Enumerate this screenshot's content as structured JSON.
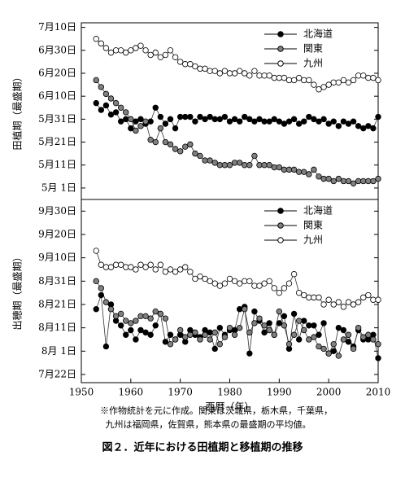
{
  "chart_data": [
    {
      "type": "line",
      "y_label": "田植期（最盛期）",
      "legend": "upper right",
      "x": [
        1953,
        1954,
        1955,
        1956,
        1957,
        1958,
        1959,
        1960,
        1961,
        1962,
        1963,
        1964,
        1965,
        1966,
        1967,
        1968,
        1969,
        1970,
        1971,
        1972,
        1973,
        1974,
        1975,
        1976,
        1977,
        1978,
        1979,
        1980,
        1981,
        1982,
        1983,
        1984,
        1985,
        1986,
        1987,
        1988,
        1989,
        1990,
        1991,
        1992,
        1993,
        1994,
        1995,
        1996,
        1997,
        1998,
        1999,
        2000,
        2001,
        2002,
        2003,
        2004,
        2005,
        2006,
        2007,
        2008,
        2009,
        2010
      ],
      "xlim": [
        1950,
        2010
      ],
      "ylim": [
        116,
        193
      ],
      "yticks": [
        {
          "value": 191,
          "label": "7月10日"
        },
        {
          "value": 181,
          "label": "6月30日"
        },
        {
          "value": 171,
          "label": "6月20日"
        },
        {
          "value": 161,
          "label": "6月10日"
        },
        {
          "value": 151,
          "label": "5月31日"
        },
        {
          "value": 141,
          "label": "5月21日"
        },
        {
          "value": 131,
          "label": "5月11日"
        },
        {
          "value": 121,
          "label": "5月 1日"
        }
      ],
      "series": [
        {
          "name": "北海道",
          "color": "#000000",
          "values": [
            158,
            155,
            157,
            153,
            154,
            150,
            151,
            147,
            150,
            151,
            149,
            150,
            156,
            152,
            149,
            151,
            147,
            152,
            152,
            152,
            150,
            152,
            151,
            152,
            151,
            151,
            152,
            150,
            151,
            150,
            152,
            151,
            150,
            151,
            150,
            150,
            151,
            150,
            149,
            150,
            151,
            149,
            150,
            152,
            151,
            150,
            151,
            149,
            150,
            148,
            150,
            149,
            150,
            148,
            147,
            148,
            147,
            152
          ]
        },
        {
          "name": "関東",
          "color": "#808080",
          "values": [
            168,
            165,
            162,
            160,
            158,
            156,
            154,
            151,
            146,
            148,
            150,
            142,
            141,
            147,
            141,
            140,
            138,
            137,
            139,
            140,
            136,
            135,
            133,
            133,
            132,
            131,
            131,
            131,
            132,
            132,
            131,
            131,
            135,
            131,
            131,
            131,
            130,
            130,
            129,
            129,
            129,
            128,
            128,
            127,
            129,
            126,
            125,
            125,
            124,
            125,
            124,
            124,
            123,
            124,
            124,
            124,
            124,
            125
          ]
        },
        {
          "name": "九州",
          "color": "#ffffff",
          "values": [
            186,
            184,
            182,
            180,
            181,
            181,
            180,
            181,
            182,
            183,
            181,
            179,
            180,
            178,
            179,
            181,
            178,
            176,
            175,
            175,
            174,
            173,
            173,
            172,
            172,
            171,
            172,
            171,
            171,
            172,
            171,
            170,
            172,
            170,
            170,
            170,
            169,
            169,
            169,
            168,
            168,
            169,
            168,
            168,
            166,
            164,
            165,
            166,
            167,
            167,
            168,
            167,
            168,
            170,
            170,
            169,
            169,
            168
          ]
        }
      ]
    },
    {
      "type": "line",
      "y_label": "出穂期（最盛期）",
      "x_label": "西暦（年）",
      "legend": "upper right",
      "x": [
        1953,
        1954,
        1955,
        1956,
        1957,
        1958,
        1959,
        1960,
        1961,
        1962,
        1963,
        1964,
        1965,
        1966,
        1967,
        1968,
        1969,
        1970,
        1971,
        1972,
        1973,
        1974,
        1975,
        1976,
        1977,
        1978,
        1979,
        1980,
        1981,
        1982,
        1983,
        1984,
        1985,
        1986,
        1987,
        1988,
        1989,
        1990,
        1991,
        1992,
        1993,
        1994,
        1995,
        1996,
        1997,
        1998,
        1999,
        2000,
        2001,
        2002,
        2003,
        2004,
        2005,
        2006,
        2007,
        2008,
        2009,
        2010
      ],
      "xlim": [
        1950,
        2010
      ],
      "xticks": [
        1950,
        1960,
        1970,
        1980,
        1990,
        2000,
        2010
      ],
      "ylim": [
        199.5,
        278
      ],
      "yticks": [
        {
          "value": 273,
          "label": "9月30日"
        },
        {
          "value": 263,
          "label": "9月20日"
        },
        {
          "value": 253,
          "label": "9月10日"
        },
        {
          "value": 243,
          "label": "8月31日"
        },
        {
          "value": 233,
          "label": "8月21日"
        },
        {
          "value": 223,
          "label": "8月11日"
        },
        {
          "value": 213,
          "label": "8月 1日"
        },
        {
          "value": 203,
          "label": "7月22日"
        }
      ],
      "series": [
        {
          "name": "北海道",
          "color": "#000000",
          "values": [
            231,
            237,
            215,
            233,
            226,
            224,
            220,
            222,
            218,
            222,
            221,
            220,
            224,
            229,
            217,
            220,
            218,
            220,
            217,
            222,
            220,
            219,
            222,
            221,
            214,
            223,
            220,
            222,
            222,
            231,
            232,
            212,
            230,
            226,
            221,
            225,
            220,
            225,
            228,
            214,
            229,
            218,
            226,
            224,
            224,
            220,
            225,
            212,
            213,
            223,
            222,
            217,
            215,
            222,
            218,
            218,
            220,
            210
          ]
        },
        {
          "name": "関東",
          "color": "#808080",
          "values": [
            243,
            240,
            234,
            231,
            228,
            229,
            226,
            225,
            226,
            228,
            228,
            227,
            230,
            229,
            227,
            216,
            218,
            222,
            219,
            220,
            221,
            218,
            220,
            218,
            221,
            216,
            219,
            223,
            220,
            223,
            231,
            221,
            225,
            227,
            224,
            222,
            220,
            230,
            224,
            216,
            220,
            226,
            222,
            218,
            219,
            215,
            214,
            212,
            216,
            211,
            218,
            220,
            214,
            223,
            219,
            220,
            218,
            216
          ]
        },
        {
          "name": "九州",
          "color": "#ffffff",
          "values": [
            256,
            250,
            249,
            249,
            250,
            250,
            249,
            249,
            248,
            250,
            249,
            250,
            248,
            250,
            247,
            248,
            247,
            248,
            249,
            247,
            244,
            245,
            244,
            243,
            242,
            241,
            242,
            244,
            243,
            242,
            243,
            243,
            241,
            241,
            242,
            243,
            240,
            238,
            240,
            242,
            246,
            238,
            237,
            236,
            236,
            236,
            233,
            235,
            233,
            234,
            232,
            234,
            233,
            234,
            236,
            237,
            235,
            235
          ]
        }
      ]
    }
  ],
  "notes": [
    "※作物統計を元に作成。関東は茨城県，栃木県，千葉県，",
    "九州は福岡県，佐賀県，熊本県の最盛期の平均値。"
  ],
  "caption": "図２．近年における田植期と移植期の推移"
}
